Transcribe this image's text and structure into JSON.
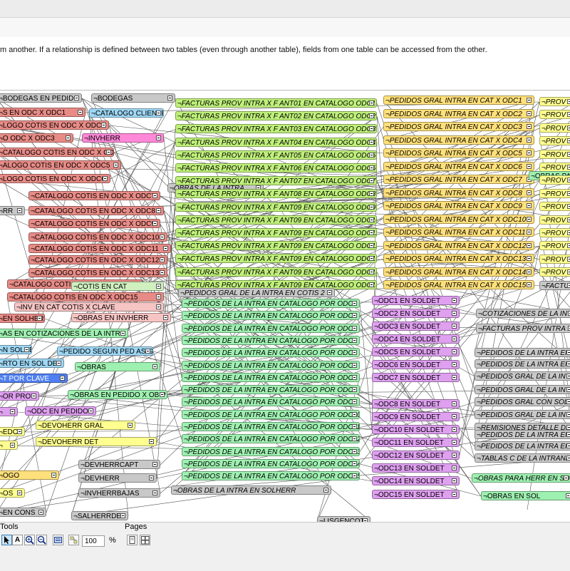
{
  "description": "m another. If a relationship is defined between two tables (even through another table), fields from one table can be accessed from the other.",
  "toolbar": {
    "tools_label": "Tools",
    "pages_label": "Pages",
    "zoom_value": "100",
    "zoom_unit": "%",
    "cursor_icon": "cursor-icon",
    "text_icon": "text-icon",
    "zoom_in_icon": "zoom-in-icon",
    "zoom_out_icon": "zoom-out-icon",
    "fit_icon": "fit-icon",
    "auto_icon": "auto-arrange-icon",
    "single_page_icon": "single-page-icon",
    "multi_page_icon": "multi-page-icon"
  },
  "tables": [
    {
      "t": "BODEGAS EN PEDIDO",
      "c": "gr"
    },
    {
      "t": "BODEGAS",
      "c": "gr"
    },
    {
      "t": "S EN ODC X ODC1",
      "c": "r"
    },
    {
      "t": "CATALOGO CLIENTE",
      "c": "b"
    },
    {
      "t": "LOGO COTIS EN ODC X ODC2",
      "c": "r"
    },
    {
      "t": "O ODC X ODC3",
      "c": "r"
    },
    {
      "t": "INVHERR",
      "c": "pk"
    },
    {
      "t": "CATALOGO COTIS EN ODC X ODC4",
      "c": "r"
    },
    {
      "t": "ALOGO COTIS EN ODC X ODC5",
      "c": "r"
    },
    {
      "t": "LOGO COTIS EN ODC X ODC6",
      "c": "r"
    },
    {
      "t": "OBRAS DE LA INTRA",
      "c": "gr"
    },
    {
      "t": "CATALOGO COTIS EN ODC X ODC7",
      "c": "r"
    },
    {
      "t": "OBRAS DE LA INTRA EN ...",
      "c": "gr"
    },
    {
      "t": "RR",
      "c": "gr"
    },
    {
      "t": "CATALOGO COTIS EN ODC X ODC8",
      "c": "r"
    },
    {
      "t": "CATALOGO COTIS EN ODC X ODC9",
      "c": "r"
    },
    {
      "t": "CATALOGO COTIS EN ODC X ODC10",
      "c": "r"
    },
    {
      "t": "CATALOGO COTIS EN ODC X ODC11",
      "c": "r"
    },
    {
      "t": "CATALOGO COTIS EN ODC X ODC12",
      "c": "r"
    },
    {
      "t": "CATALOGO COTIS EN ODC X ODC13",
      "c": "r"
    },
    {
      "t": "CATALOGO COTIS EN ODC X ODC14",
      "c": "r"
    },
    {
      "t": "COTIS EN CAT",
      "c": "lg"
    },
    {
      "t": "CATALOGO COTIS EN ODC X ODC15",
      "c": "r"
    },
    {
      "t": "INV EN CAT COTIS X CLAVE",
      "c": "rs"
    },
    {
      "t": "EN SOLHERR",
      "c": "r"
    },
    {
      "t": "OBRAS EN INVHERR",
      "c": "rs"
    },
    {
      "t": "AS EN COTIZACIONES DE LA INTRA",
      "c": "pg"
    },
    {
      "t": "N SOLDET",
      "c": "b"
    },
    {
      "t": "PEDIDO SEGUN PED ASIG",
      "c": "b"
    },
    {
      "t": "RTO EN SOL DET",
      "c": "b"
    },
    {
      "t": "OBRAS",
      "c": "pg"
    },
    {
      "t": "T POR CLAVE",
      "c": "bl"
    },
    {
      "t": "OR PROV",
      "c": "p"
    },
    {
      "t": "OBRAS EN PEDIDO X OB P ENVIO",
      "c": "pg"
    },
    {
      "t": "",
      "c": "p"
    },
    {
      "t": "ODC EN PEDIDO",
      "c": "p"
    },
    {
      "t": "DEVOHERR GRAL",
      "c": "yy"
    },
    {
      "t": "EDO",
      "c": "yy"
    },
    {
      "t": "DEVOHERR DET",
      "c": "yy"
    },
    {
      "t": "",
      "c": "yy"
    },
    {
      "t": "DEVHERRCAPT",
      "c": "gr"
    },
    {
      "t": "OGO",
      "c": "y"
    },
    {
      "t": "DEVHERR",
      "c": "gr"
    },
    {
      "t": "OS",
      "c": "yy"
    },
    {
      "t": "INVHERRBAJAS",
      "c": "gr"
    },
    {
      "t": "EN CONS",
      "c": "gr"
    },
    {
      "t": "SALHERRDET",
      "c": "gr"
    },
    {
      "t": "FACTURAS PROV INTRA X F ANT01 EN CATALOGO ODC1",
      "c": "g"
    },
    {
      "t": "FACTURAS PROV INTRA X F ANT02 EN CATALOGO ODC2",
      "c": "g"
    },
    {
      "t": "FACTURAS PROV INTRA X F ANT03 EN CATALOGO ODC3",
      "c": "g"
    },
    {
      "t": "FACTURAS PROV INTRA X F ANT04 EN CATALOGO ODC4",
      "c": "g"
    },
    {
      "t": "FACTURAS PROV INTRA X F ANT05 EN CATALOGO ODC5",
      "c": "g"
    },
    {
      "t": "FACTURAS PROV INTRA X F ANT06 EN CATALOGO ODC6",
      "c": "g"
    },
    {
      "t": "FACTURAS PROV INTRA X F ANT07 EN CATALOGO ODC7",
      "c": "g"
    },
    {
      "t": "FACTURAS PROV INTRA X F ANT08 EN CATALOGO ODC8",
      "c": "g"
    },
    {
      "t": "FACTURAS PROV INTRA X F ANT09 EN CATALOGO ODC9",
      "c": "g"
    },
    {
      "t": "FACTURAS PROV INTRA X F ANT09 EN CATALOGO ODC10",
      "c": "g"
    },
    {
      "t": "FACTURAS PROV INTRA X F ANT09 EN CATALOGO ODC11",
      "c": "g"
    },
    {
      "t": "FACTURAS PROV INTRA X F ANT09 EN CATALOGO ODC12",
      "c": "g"
    },
    {
      "t": "FACTURAS PROV INTRA X F ANT09 EN CATALOGO ODC13",
      "c": "g"
    },
    {
      "t": "FACTURAS PROV INTRA X F ANT09 EN CATALOGO ODC14",
      "c": "g"
    },
    {
      "t": "FACTURAS PROV INTRA X F ANT09 EN CATALOGO ODC15",
      "c": "g"
    },
    {
      "t": "PEDIDOS GRAL DE LA INTRA EN COTIS 2",
      "c": "gr"
    },
    {
      "t": "PEDIDOS DE LA INTRA EN CATALOGO POR ODC1",
      "c": "pg"
    },
    {
      "t": "PEDIDOS DE LA INTRA EN CATALOGO POR ODC2",
      "c": "pg"
    },
    {
      "t": "PEDIDOS DE LA INTRA EN CATALOGO POR ODC3",
      "c": "pg"
    },
    {
      "t": "PEDIDOS DE LA INTRA EN CATALOGO POR ODC4",
      "c": "pg"
    },
    {
      "t": "PEDIDOS DE LA INTRA EN CATALOGO POR ODC5",
      "c": "pg"
    },
    {
      "t": "PEDIDOS DE LA INTRA EN CATALOGO POR ODC6",
      "c": "pg"
    },
    {
      "t": "PEDIDOS DE LA INTRA EN CATALOGO POR ODC7",
      "c": "pg"
    },
    {
      "t": "PEDIDOS DE LA INTRA EN CATALOGO POR ODC8",
      "c": "pg"
    },
    {
      "t": "PEDIDOS DE LA INTRA EN CATALOGO POR ODC9",
      "c": "pg"
    },
    {
      "t": "PEDIDOS DE LA INTRA EN CATALOGO POR ODC10",
      "c": "pg"
    },
    {
      "t": "PEDIDOS DE LA INTRA EN CATALOGO POR ODC11",
      "c": "pg"
    },
    {
      "t": "PEDIDOS DE LA INTRA EN CATALOGO POR ODC12",
      "c": "pg"
    },
    {
      "t": "PEDIDOS DE LA INTRA EN CATALOGO POR ODC13",
      "c": "pg"
    },
    {
      "t": "PEDIDOS DE LA INTRA EN CATALOGO POR ODC14",
      "c": "pg"
    },
    {
      "t": "PEDIDOS DE LA INTRA EN CATALOGO POR ODC15",
      "c": "pg"
    },
    {
      "t": "OBRAS DE LA INTRA EN SOLHERR",
      "c": "gr"
    },
    {
      "t": "LISGENCOTI",
      "c": "gr"
    },
    {
      "t": "PEDIDOS GRAL INTRA EN CAT X ODC1",
      "c": "y"
    },
    {
      "t": "PEDIDOS GRAL INTRA EN CAT X ODC2",
      "c": "y"
    },
    {
      "t": "PEDIDOS GRAL INTRA EN CAT X ODC3",
      "c": "y"
    },
    {
      "t": "PEDIDOS GRAL INTRA EN CAT X ODC4",
      "c": "y"
    },
    {
      "t": "PEDIDOS GRAL INTRA EN CAT X ODC5",
      "c": "y"
    },
    {
      "t": "PEDIDOS GRAL INTRA EN CAT X ODC6",
      "c": "y"
    },
    {
      "t": "PEDIDOS GRAL INTRA EN CAT X ODC7",
      "c": "y"
    },
    {
      "t": "PEDIDOS GRAL INTRA EN CAT X ODC8",
      "c": "y"
    },
    {
      "t": "PEDIDOS GRAL INTRA EN CAT X ODC9",
      "c": "y"
    },
    {
      "t": "PEDIDOS GRAL INTRA EN CAT X ODC10",
      "c": "y"
    },
    {
      "t": "PEDIDOS GRAL INTRA EN CAT X ODC11",
      "c": "y"
    },
    {
      "t": "PEDIDOS GRAL INTRA EN CAT X ODC12",
      "c": "y"
    },
    {
      "t": "PEDIDOS GRAL INTRA EN CAT X ODC13",
      "c": "y"
    },
    {
      "t": "PEDIDOS GRAL INTRA EN CAT X ODC14",
      "c": "y"
    },
    {
      "t": "PEDIDOS GRAL INTRA EN CAT X ODC15",
      "c": "y"
    },
    {
      "t": "ODC1 EN SOLDET",
      "c": "p"
    },
    {
      "t": "ODC2 EN SOLDET",
      "c": "p"
    },
    {
      "t": "ODC3 EN SOLDET",
      "c": "p"
    },
    {
      "t": "ODC4 EN SOLDET",
      "c": "p"
    },
    {
      "t": "ODC5 EN SOLDET",
      "c": "p"
    },
    {
      "t": "ODC6 EN SOLDET",
      "c": "p"
    },
    {
      "t": "ODC7 EN SOLDET",
      "c": "p"
    },
    {
      "t": "ODC8 EN SOLDET",
      "c": "p"
    },
    {
      "t": "ODC9 EN SOLDET",
      "c": "p"
    },
    {
      "t": "ODC10 EN SOLDET",
      "c": "p"
    },
    {
      "t": "ODC11 EN SOLDET",
      "c": "p"
    },
    {
      "t": "ODC12 EN SOLDET",
      "c": "p"
    },
    {
      "t": "ODC13 EN SOLDET",
      "c": "p"
    },
    {
      "t": "ODC14 EN SOLDET",
      "c": "p"
    },
    {
      "t": "ODC15 EN SOLDET",
      "c": "p"
    },
    {
      "t": "PROV E",
      "c": "yy"
    },
    {
      "t": "PROV E",
      "c": "yy"
    },
    {
      "t": "PROV E",
      "c": "yy"
    },
    {
      "t": "PROV E",
      "c": "yy"
    },
    {
      "t": "PROV E",
      "c": "yy"
    },
    {
      "t": "PROV E",
      "c": "yy"
    },
    {
      "t": "OBRAS PARA",
      "c": "pg"
    },
    {
      "t": "PROV E",
      "c": "yy"
    },
    {
      "t": "PROV E",
      "c": "yy"
    },
    {
      "t": "PROV E",
      "c": "yy"
    },
    {
      "t": "PROV E",
      "c": "yy"
    },
    {
      "t": "PROV E",
      "c": "yy"
    },
    {
      "t": "PROV E",
      "c": "yy"
    },
    {
      "t": "PROV E",
      "c": "yy"
    },
    {
      "t": "PROV E",
      "c": "yy"
    },
    {
      "t": "FACTURAS PROV INTRA X F",
      "c": "gr"
    },
    {
      "t": "COTIZACIONES DE LA INTRA",
      "c": "gr"
    },
    {
      "t": "FACTURAS PROV INTRA X NU",
      "c": "gr"
    },
    {
      "t": "PEDIDOS DE LA INTRA EN",
      "c": "gr"
    },
    {
      "t": "PEDIDOS DE LA INTRA EN",
      "c": "gr"
    },
    {
      "t": "PEDIDOS GRAL DE LA INTRA",
      "c": "gr"
    },
    {
      "t": "PEDIDOS GRAL DE LA INTRA",
      "c": "gr"
    },
    {
      "t": "PEDIDOS GRAL CON SOLMAT",
      "c": "gr"
    },
    {
      "t": "PEDIDOS GRAL DE LA INTRA",
      "c": "gr"
    },
    {
      "t": "REMISIONES DETALLE DE LA",
      "c": "gr"
    },
    {
      "t": "PEDIDOS DE LA INTRA EN CA",
      "c": "gr"
    },
    {
      "t": "PEDIDOS DE LA INTRA EN CA",
      "c": "gr"
    },
    {
      "t": "TABLAS C DE LA INTRANET",
      "c": "gr"
    },
    {
      "t": "OBRAS PARA HERR EN SOL",
      "c": "pg"
    },
    {
      "t": "OBRAS EN SOL",
      "c": "pg"
    }
  ]
}
